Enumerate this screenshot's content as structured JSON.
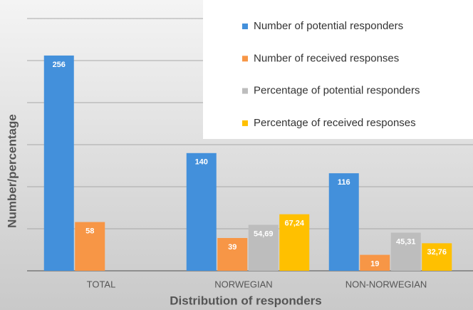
{
  "chart_data": {
    "type": "bar",
    "xlabel": "Distribution of responders",
    "ylabel": "Number/percentage",
    "categories": [
      "TOTAL",
      "NORWEGIAN",
      "NON-NORWEGIAN"
    ],
    "series": [
      {
        "name": "Number of potential responders",
        "color": "#4390db",
        "values": [
          256,
          140,
          116
        ]
      },
      {
        "name": "Number of received responses",
        "color": "#f79646",
        "values": [
          58,
          39,
          19
        ]
      },
      {
        "name": "Percentage of potential responders",
        "color": "#bdbdbd",
        "values": [
          null,
          54.69,
          45.31
        ],
        "value_labels": [
          null,
          "54,69",
          "45,31"
        ]
      },
      {
        "name": "Percentage of received responses",
        "color": "#ffc000",
        "values": [
          null,
          67.24,
          32.76
        ],
        "value_labels": [
          null,
          "67,24",
          "32,76"
        ]
      }
    ],
    "ylim": [
      0,
      300
    ],
    "yticks": [
      0,
      50,
      100,
      150,
      200,
      250,
      300
    ],
    "grid": true
  }
}
